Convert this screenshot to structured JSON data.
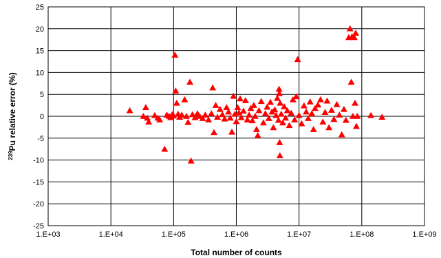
{
  "chart_data": {
    "type": "scatter",
    "xlabel": "Total number of counts",
    "ylabel_sup": "239",
    "ylabel_main": "Pu relative error (%)",
    "x_scale": "log",
    "xlim": [
      1000,
      1000000000
    ],
    "ylim": [
      -25,
      25
    ],
    "x_ticks": [
      1000,
      10000,
      100000,
      1000000,
      10000000,
      100000000,
      1000000000
    ],
    "x_tick_labels": [
      "1.E+03",
      "1.E+04",
      "1.E+05",
      "1.E+06",
      "1.E+07",
      "1.E+08",
      "1.E+09"
    ],
    "y_ticks": [
      25,
      20,
      15,
      10,
      5,
      0,
      -5,
      -10,
      -15,
      -20,
      -25
    ],
    "y_tick_labels": [
      "25",
      "20",
      "15",
      "10",
      "5",
      "0",
      "-5",
      "-10",
      "-15",
      "-20",
      "-25"
    ],
    "grid": true,
    "legend": "none",
    "marker": "triangle",
    "marker_color": "#ff0000",
    "series": [
      {
        "points": [
          [
            20000,
            1.3
          ],
          [
            33000,
            0.0
          ],
          [
            36000,
            2.0
          ],
          [
            38000,
            -0.4
          ],
          [
            40000,
            -1.3
          ],
          [
            50000,
            0.2
          ],
          [
            56000,
            -0.4
          ],
          [
            60000,
            -0.8
          ],
          [
            72000,
            -7.5
          ],
          [
            78000,
            0.3
          ],
          [
            85000,
            0.0
          ],
          [
            90000,
            -0.3
          ],
          [
            95000,
            0.4
          ],
          [
            100000,
            0.1
          ],
          [
            105000,
            14.0
          ],
          [
            108000,
            5.8
          ],
          [
            112000,
            3.0
          ],
          [
            118000,
            0.5
          ],
          [
            125000,
            -0.2
          ],
          [
            135000,
            0.3
          ],
          [
            150000,
            3.8
          ],
          [
            160000,
            0.0
          ],
          [
            170000,
            -1.4
          ],
          [
            182000,
            7.8
          ],
          [
            190000,
            -10.2
          ],
          [
            200000,
            0.4
          ],
          [
            220000,
            -0.3
          ],
          [
            240000,
            0.6
          ],
          [
            260000,
            0.0
          ],
          [
            290000,
            -0.5
          ],
          [
            320000,
            0.3
          ],
          [
            360000,
            -0.8
          ],
          [
            400000,
            0.6
          ],
          [
            420000,
            6.5
          ],
          [
            440000,
            -3.7
          ],
          [
            470000,
            2.5
          ],
          [
            500000,
            -0.2
          ],
          [
            550000,
            1.6
          ],
          [
            600000,
            0.4
          ],
          [
            650000,
            -0.6
          ],
          [
            700000,
            2.0
          ],
          [
            750000,
            1.0
          ],
          [
            800000,
            -0.4
          ],
          [
            850000,
            -3.6
          ],
          [
            900000,
            4.6
          ],
          [
            950000,
            0.5
          ],
          [
            1000000,
            -1.2
          ],
          [
            1050000,
            2.0
          ],
          [
            1100000,
            0.8
          ],
          [
            1150000,
            4.0
          ],
          [
            1200000,
            -0.3
          ],
          [
            1300000,
            1.2
          ],
          [
            1400000,
            3.6
          ],
          [
            1500000,
            -0.8
          ],
          [
            1600000,
            0.3
          ],
          [
            1700000,
            1.8
          ],
          [
            1800000,
            -1.0
          ],
          [
            1900000,
            2.5
          ],
          [
            2000000,
            0.0
          ],
          [
            2100000,
            -3.0
          ],
          [
            2200000,
            -4.4
          ],
          [
            2300000,
            1.3
          ],
          [
            2500000,
            3.4
          ],
          [
            2700000,
            -1.5
          ],
          [
            2900000,
            0.6
          ],
          [
            3100000,
            2.1
          ],
          [
            3300000,
            -0.5
          ],
          [
            3500000,
            3.2
          ],
          [
            3700000,
            1.0
          ],
          [
            3900000,
            -2.6
          ],
          [
            4100000,
            1.5
          ],
          [
            4300000,
            0.2
          ],
          [
            4500000,
            4.1
          ],
          [
            4700000,
            -0.9
          ],
          [
            4800000,
            6.2
          ],
          [
            4850000,
            5.2
          ],
          [
            4900000,
            -6.0
          ],
          [
            4950000,
            -9.0
          ],
          [
            5000000,
            3.0
          ],
          [
            5200000,
            0.5
          ],
          [
            5500000,
            -1.5
          ],
          [
            5800000,
            2.2
          ],
          [
            6100000,
            -0.4
          ],
          [
            6500000,
            1.3
          ],
          [
            7000000,
            -2.1
          ],
          [
            7500000,
            0.7
          ],
          [
            8000000,
            3.8
          ],
          [
            8500000,
            -0.8
          ],
          [
            9000000,
            4.5
          ],
          [
            9500000,
            13.0
          ],
          [
            10000000,
            0.2
          ],
          [
            11000000,
            -1.7
          ],
          [
            12000000,
            2.4
          ],
          [
            13000000,
            1.0
          ],
          [
            14000000,
            -0.5
          ],
          [
            15000000,
            3.3
          ],
          [
            16000000,
            0.6
          ],
          [
            17000000,
            -3.0
          ],
          [
            18000000,
            1.8
          ],
          [
            20000000,
            2.6
          ],
          [
            22000000,
            3.8
          ],
          [
            24000000,
            -1.3
          ],
          [
            26000000,
            0.9
          ],
          [
            28000000,
            3.5
          ],
          [
            30000000,
            -2.6
          ],
          [
            33000000,
            1.4
          ],
          [
            36000000,
            -0.7
          ],
          [
            40000000,
            2.7
          ],
          [
            44000000,
            0.3
          ],
          [
            48000000,
            -4.2
          ],
          [
            52000000,
            1.6
          ],
          [
            56000000,
            -0.9
          ],
          [
            62000000,
            18.0
          ],
          [
            65000000,
            20.0
          ],
          [
            68000000,
            7.8
          ],
          [
            70000000,
            18.2
          ],
          [
            72000000,
            0.0
          ],
          [
            76000000,
            18.0
          ],
          [
            78000000,
            3.0
          ],
          [
            80000000,
            19.0
          ],
          [
            82000000,
            -2.3
          ],
          [
            85000000,
            0.0
          ],
          [
            140000000,
            0.2
          ],
          [
            210000000,
            -0.2
          ]
        ]
      }
    ]
  }
}
